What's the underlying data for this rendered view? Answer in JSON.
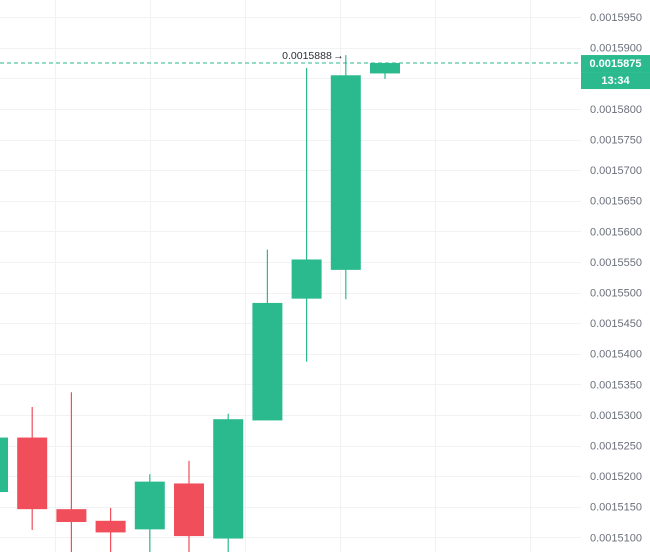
{
  "chart_data": {
    "type": "candlestick",
    "y_axis": {
      "side": "right",
      "ylim": [
        0.0015076,
        0.0015978
      ],
      "ticks": [
        "0.0015950",
        "0.0015900",
        "0.0015850",
        "0.0015800",
        "0.0015750",
        "0.0015700",
        "0.0015650",
        "0.0015600",
        "0.0015550",
        "0.0015500",
        "0.0015450",
        "0.0015400",
        "0.0015350",
        "0.0015300",
        "0.0015250",
        "0.0015200",
        "0.0015150",
        "0.0015100",
        "0.0015050"
      ]
    },
    "grid": true,
    "candles": [
      {
        "open": 0.0015174,
        "high": 0.0015263,
        "low": 0.0015174,
        "close": 0.0015263
      },
      {
        "open": 0.0015263,
        "high": 0.0015313,
        "low": 0.0015112,
        "close": 0.0015146
      },
      {
        "open": 0.0015146,
        "high": 0.0015337,
        "low": 0.0015042,
        "close": 0.0015125
      },
      {
        "open": 0.0015127,
        "high": 0.0015148,
        "low": 0.0015034,
        "close": 0.0015108
      },
      {
        "open": 0.0015113,
        "high": 0.0015203,
        "low": 0.0015034,
        "close": 0.0015191
      },
      {
        "open": 0.0015188,
        "high": 0.0015225,
        "low": 0.0015048,
        "close": 0.0015102
      },
      {
        "open": 0.0015098,
        "high": 0.0015302,
        "low": 0.0015065,
        "close": 0.0015293
      },
      {
        "open": 0.0015291,
        "high": 0.001557,
        "low": 0.0015291,
        "close": 0.0015483
      },
      {
        "open": 0.001549,
        "high": 0.0015867,
        "low": 0.0015387,
        "close": 0.0015554
      },
      {
        "open": 0.0015537,
        "high": 0.0015888,
        "low": 0.0015489,
        "close": 0.0015855
      },
      {
        "open": 0.0015858,
        "high": 0.0015875,
        "low": 0.0015849,
        "close": 0.0015875
      }
    ],
    "last_price": 0.0015875,
    "last_price_label": "0.0015875",
    "countdown": "13:34",
    "high_marker": {
      "value": 0.0015888,
      "label": "0.0015888"
    },
    "colors": {
      "up": "#2bba8e",
      "down": "#ef4e5a",
      "grid": "#f1f2f4",
      "axis_text": "#6b6f7a",
      "price_line": "#2bba8e"
    }
  }
}
